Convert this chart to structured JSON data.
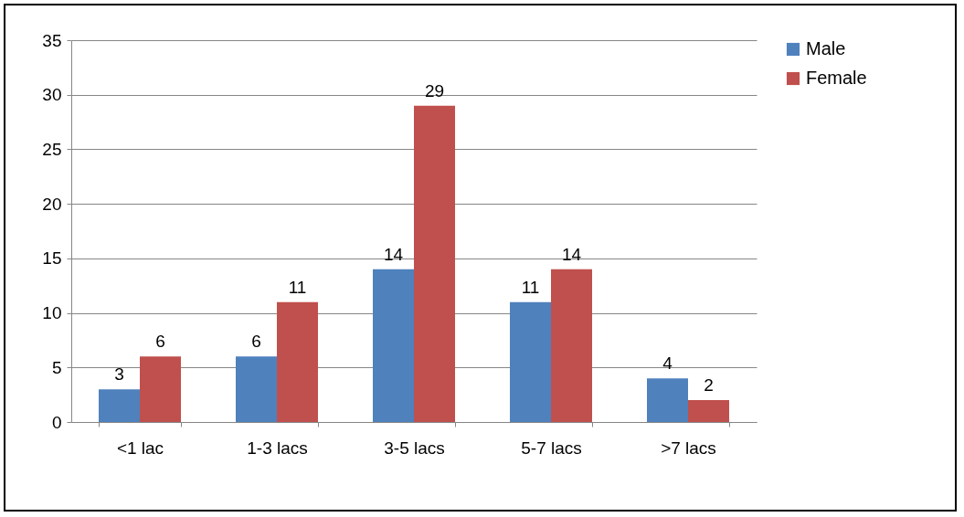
{
  "chart_data": {
    "type": "bar",
    "categories": [
      "<1 lac",
      "1-3 lacs",
      "3-5 lacs",
      "5-7 lacs",
      ">7 lacs"
    ],
    "series": [
      {
        "name": "Male",
        "color": "#4f81bd",
        "values": [
          3,
          6,
          14,
          11,
          4
        ]
      },
      {
        "name": "Female",
        "color": "#c0504d",
        "values": [
          6,
          11,
          29,
          14,
          2
        ]
      }
    ],
    "ylim": [
      0,
      35
    ],
    "yticks": [
      0,
      5,
      10,
      15,
      20,
      25,
      30,
      35
    ],
    "grid": "y",
    "legend": "right",
    "data_labels": true
  }
}
